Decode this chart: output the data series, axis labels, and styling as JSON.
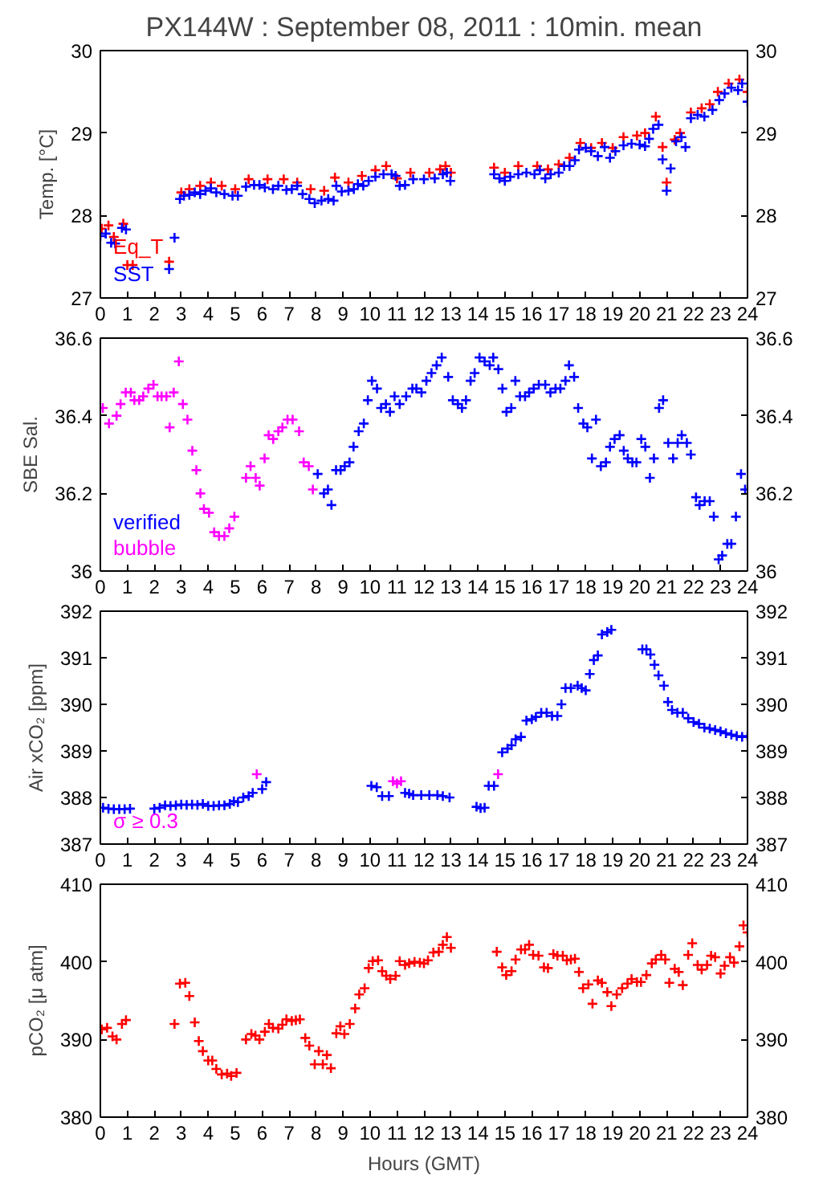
{
  "chart_data": [
    {
      "type": "scatter",
      "title": "PX144W : September 08, 2011 : 10min. mean",
      "ylabel": "Temp. [°C]",
      "xlim": [
        0,
        24
      ],
      "xticks": [
        0,
        1,
        2,
        3,
        4,
        5,
        6,
        7,
        8,
        9,
        10,
        11,
        12,
        13,
        14,
        15,
        16,
        17,
        18,
        19,
        20,
        21,
        22,
        23,
        24
      ],
      "ylim": [
        27,
        30
      ],
      "yticks": [
        27,
        28,
        29,
        30
      ],
      "y2lim": [
        27,
        30
      ],
      "y2ticks": [
        27,
        28,
        29,
        30
      ],
      "grid": false,
      "legend": "bottom left",
      "marker": "cross",
      "series": [
        {
          "name": "Eq_T",
          "color": "#ff0000",
          "x": [
            0.05,
            0.3,
            0.5,
            0.85,
            1.0,
            1.2,
            2.55,
            3.0,
            3.3,
            3.7,
            4.1,
            4.5,
            5.0,
            5.5,
            6.2,
            6.8,
            7.3,
            7.8,
            8.3,
            8.7,
            9.2,
            9.7,
            10.2,
            10.6,
            11.0,
            11.5,
            12.2,
            12.6,
            12.8,
            13.0,
            14.6,
            15.0,
            15.5,
            16.2,
            16.6,
            17.0,
            17.4,
            17.8,
            18.2,
            18.6,
            19.0,
            19.4,
            19.9,
            20.2,
            20.6,
            20.85,
            21.0,
            21.3,
            21.5,
            21.9,
            22.3,
            22.6,
            22.9,
            23.3,
            23.7,
            24.0
          ],
          "values": [
            27.84,
            27.88,
            27.74,
            27.9,
            27.4,
            27.4,
            27.44,
            28.28,
            28.32,
            28.36,
            28.4,
            28.36,
            28.32,
            28.44,
            28.44,
            28.44,
            28.4,
            28.32,
            28.3,
            28.46,
            28.4,
            28.48,
            28.55,
            28.6,
            28.45,
            28.52,
            28.52,
            28.56,
            28.6,
            28.52,
            28.58,
            28.52,
            28.6,
            28.6,
            28.56,
            28.62,
            28.7,
            28.88,
            28.82,
            28.88,
            28.82,
            28.95,
            28.97,
            29.0,
            29.2,
            28.83,
            28.4,
            28.92,
            29.0,
            29.25,
            29.3,
            29.35,
            29.5,
            29.6,
            29.65,
            29.5
          ]
        },
        {
          "name": "SST",
          "color": "#0000ff",
          "x": [
            0.0,
            0.2,
            0.4,
            0.55,
            0.8,
            0.95,
            2.55,
            2.75,
            2.95,
            3.1,
            3.3,
            3.5,
            3.7,
            3.9,
            4.1,
            4.3,
            4.6,
            4.9,
            5.1,
            5.4,
            5.7,
            5.9,
            6.1,
            6.4,
            6.6,
            6.9,
            7.1,
            7.3,
            7.5,
            7.75,
            7.95,
            8.2,
            8.45,
            8.65,
            8.75,
            8.95,
            9.2,
            9.4,
            9.55,
            9.75,
            9.95,
            10.2,
            10.5,
            10.8,
            10.95,
            11.1,
            11.3,
            11.6,
            12.0,
            12.4,
            12.7,
            12.85,
            12.98,
            14.6,
            14.8,
            15.0,
            15.2,
            15.5,
            15.8,
            16.1,
            16.3,
            16.5,
            16.7,
            17.0,
            17.2,
            17.4,
            17.6,
            17.75,
            18.0,
            18.2,
            18.45,
            18.7,
            18.9,
            19.1,
            19.4,
            19.7,
            20.0,
            20.2,
            20.35,
            20.5,
            20.7,
            20.85,
            21.0,
            21.15,
            21.35,
            21.55,
            21.7,
            21.9,
            22.15,
            22.4,
            22.7,
            22.95,
            23.15,
            23.4,
            23.65,
            23.8,
            24.0
          ],
          "values": [
            27.75,
            27.78,
            27.67,
            27.66,
            27.85,
            27.83,
            27.35,
            27.73,
            28.2,
            28.24,
            28.25,
            28.28,
            28.26,
            28.3,
            28.33,
            28.28,
            28.26,
            28.24,
            28.24,
            28.35,
            28.37,
            28.37,
            28.34,
            28.32,
            28.36,
            28.31,
            28.32,
            28.36,
            28.26,
            28.2,
            28.15,
            28.18,
            28.2,
            28.18,
            28.36,
            28.29,
            28.3,
            28.32,
            28.38,
            28.36,
            28.42,
            28.47,
            28.5,
            28.5,
            28.48,
            28.36,
            28.37,
            28.44,
            28.44,
            28.45,
            28.5,
            28.52,
            28.42,
            28.5,
            28.45,
            28.42,
            28.47,
            28.5,
            28.52,
            28.5,
            28.55,
            28.45,
            28.5,
            28.52,
            28.6,
            28.6,
            28.67,
            28.8,
            28.82,
            28.78,
            28.72,
            28.83,
            28.7,
            28.78,
            28.85,
            28.87,
            28.86,
            28.84,
            28.93,
            29.05,
            29.1,
            28.68,
            28.3,
            28.57,
            28.9,
            28.95,
            28.83,
            29.18,
            29.22,
            29.2,
            29.28,
            29.4,
            29.48,
            29.55,
            29.52,
            29.6,
            29.38
          ]
        }
      ]
    },
    {
      "type": "scatter",
      "ylabel": "SBE Sal.",
      "xlim": [
        0,
        24
      ],
      "xticks": [
        0,
        1,
        2,
        3,
        4,
        5,
        6,
        7,
        8,
        9,
        10,
        11,
        12,
        13,
        14,
        15,
        16,
        17,
        18,
        19,
        20,
        21,
        22,
        23,
        24
      ],
      "ylim": [
        36,
        36.6
      ],
      "yticks": [
        36,
        36.2,
        36.4,
        36.6
      ],
      "y2lim": [
        36,
        36.6
      ],
      "y2ticks": [
        36,
        36.2,
        36.4,
        36.6
      ],
      "grid": false,
      "legend": "bottom left",
      "marker": "cross",
      "series": [
        {
          "name": "verified",
          "color": "#0000ff",
          "x": [
            8.06,
            8.29,
            8.44,
            8.57,
            8.74,
            8.91,
            9.06,
            9.24,
            9.39,
            9.58,
            9.77,
            9.92,
            10.07,
            10.26,
            10.41,
            10.59,
            10.74,
            10.91,
            11.1,
            11.34,
            11.57,
            11.72,
            11.91,
            12.09,
            12.28,
            12.47,
            12.66,
            12.9,
            13.07,
            13.26,
            13.41,
            13.56,
            13.73,
            13.88,
            14.06,
            14.25,
            14.44,
            14.57,
            14.76,
            14.91,
            15.06,
            15.24,
            15.39,
            15.56,
            15.75,
            15.9,
            16.07,
            16.26,
            16.5,
            16.69,
            16.88,
            17.06,
            17.25,
            17.38,
            17.57,
            17.72,
            17.91,
            18.06,
            18.23,
            18.38,
            18.56,
            18.75,
            18.9,
            19.07,
            19.26,
            19.41,
            19.56,
            19.73,
            19.88,
            20.06,
            20.21,
            20.38,
            20.53,
            20.72,
            20.87,
            21.06,
            21.24,
            21.41,
            21.56,
            21.75,
            21.9,
            22.09,
            22.22,
            22.41,
            22.6,
            22.75,
            22.93,
            23.06,
            23.25,
            23.4,
            23.57,
            23.76,
            23.91
          ],
          "values": [
            36.25,
            36.2,
            36.21,
            36.17,
            36.26,
            36.26,
            36.27,
            36.28,
            36.32,
            36.36,
            36.38,
            36.44,
            36.49,
            36.47,
            36.42,
            36.43,
            36.41,
            36.45,
            36.43,
            36.45,
            36.47,
            36.47,
            36.46,
            36.49,
            36.51,
            36.53,
            36.55,
            36.5,
            36.44,
            36.43,
            36.42,
            36.44,
            36.49,
            36.51,
            36.55,
            36.54,
            36.53,
            36.55,
            36.52,
            36.47,
            36.41,
            36.42,
            36.49,
            36.45,
            36.45,
            36.46,
            36.47,
            36.48,
            36.48,
            36.46,
            36.47,
            36.47,
            36.49,
            36.53,
            36.5,
            36.42,
            36.38,
            36.37,
            36.29,
            36.39,
            36.27,
            36.28,
            36.32,
            36.34,
            36.35,
            36.31,
            36.29,
            36.28,
            36.28,
            36.34,
            36.32,
            36.24,
            36.29,
            36.42,
            36.44,
            36.33,
            36.29,
            36.33,
            36.35,
            36.33,
            36.3,
            36.19,
            36.17,
            36.18,
            36.18,
            36.14,
            36.03,
            36.04,
            36.07,
            36.07,
            36.14,
            36.25,
            36.21
          ]
        },
        {
          "name": "bubble",
          "color": "#ff00ff",
          "x": [
            0.09,
            0.32,
            0.6,
            0.75,
            0.94,
            1.13,
            1.26,
            1.44,
            1.59,
            1.78,
            1.97,
            2.12,
            2.27,
            2.45,
            2.57,
            2.72,
            2.91,
            3.06,
            3.23,
            3.41,
            3.56,
            3.71,
            3.84,
            4.03,
            4.22,
            4.4,
            4.6,
            4.78,
            4.97,
            5.4,
            5.57,
            5.76,
            5.91,
            6.09,
            6.24,
            6.41,
            6.6,
            6.75,
            6.94,
            7.13,
            7.37,
            7.54,
            7.73,
            7.88
          ],
          "values": [
            36.42,
            36.38,
            36.4,
            36.43,
            36.46,
            36.46,
            36.44,
            36.44,
            36.45,
            36.47,
            36.48,
            36.45,
            36.45,
            36.45,
            36.37,
            36.46,
            36.54,
            36.43,
            36.39,
            36.31,
            36.26,
            36.2,
            36.16,
            36.15,
            36.1,
            36.09,
            36.09,
            36.11,
            36.14,
            36.24,
            36.27,
            36.24,
            36.22,
            36.29,
            36.35,
            36.34,
            36.36,
            36.37,
            36.39,
            36.39,
            36.36,
            36.28,
            36.27,
            36.21
          ]
        }
      ]
    },
    {
      "type": "scatter",
      "ylabel": "Air xCO₂ [ppm]",
      "xlim": [
        0,
        24
      ],
      "xticks": [
        0,
        1,
        2,
        3,
        4,
        5,
        6,
        7,
        8,
        9,
        10,
        11,
        12,
        13,
        14,
        15,
        16,
        17,
        18,
        19,
        20,
        21,
        22,
        23,
        24
      ],
      "ylim": [
        387,
        392
      ],
      "yticks": [
        387,
        388,
        389,
        390,
        391,
        392
      ],
      "y2lim": [
        387,
        392
      ],
      "y2ticks": [
        387,
        388,
        389,
        390,
        391,
        392
      ],
      "grid": false,
      "legend": "bottom left",
      "marker": "cross",
      "series": [
        {
          "color": "#0000ff",
          "x": [
            0.1,
            0.3,
            0.5,
            0.7,
            0.9,
            1.1,
            2.0,
            2.2,
            2.4,
            2.6,
            2.8,
            3.0,
            3.2,
            3.4,
            3.6,
            3.8,
            4.0,
            4.2,
            4.4,
            4.6,
            4.8,
            4.95,
            5.1,
            5.3,
            5.5,
            5.65,
            6.0,
            6.15,
            10.05,
            10.25,
            10.45,
            10.7,
            11.3,
            11.45,
            11.6,
            11.9,
            12.2,
            12.5,
            12.7,
            12.95,
            13.95,
            14.1,
            14.25,
            14.4,
            14.6,
            14.9,
            15.1,
            15.25,
            15.4,
            15.6,
            15.8,
            16.0,
            16.15,
            16.35,
            16.55,
            16.75,
            16.95,
            17.1,
            17.25,
            17.45,
            17.7,
            17.85,
            18.0,
            18.15,
            18.3,
            18.45,
            18.6,
            18.8,
            18.95,
            20.1,
            20.25,
            20.4,
            20.55,
            20.7,
            20.9,
            21.05,
            21.2,
            21.4,
            21.6,
            21.8,
            22.0,
            22.2,
            22.4,
            22.6,
            22.8,
            23.0,
            23.2,
            23.4,
            23.6,
            23.8,
            24.0
          ],
          "values": [
            387.78,
            387.76,
            387.75,
            387.75,
            387.75,
            387.76,
            387.76,
            387.78,
            387.83,
            387.82,
            387.83,
            387.85,
            387.84,
            387.85,
            387.84,
            387.86,
            387.82,
            387.82,
            387.83,
            387.83,
            387.86,
            387.92,
            387.9,
            388.0,
            388.03,
            388.1,
            388.18,
            388.33,
            388.25,
            388.22,
            388.03,
            388.03,
            388.1,
            388.08,
            388.05,
            388.05,
            388.05,
            388.05,
            388.03,
            388.0,
            387.8,
            387.77,
            387.78,
            388.25,
            388.25,
            388.97,
            389.05,
            389.12,
            389.25,
            389.3,
            389.65,
            389.68,
            389.73,
            389.82,
            389.82,
            389.75,
            389.75,
            390.0,
            390.35,
            390.35,
            390.4,
            390.35,
            390.3,
            390.65,
            390.95,
            391.05,
            391.5,
            391.55,
            391.6,
            391.18,
            391.18,
            391.07,
            390.85,
            390.62,
            390.4,
            390.05,
            389.88,
            389.82,
            389.82,
            389.7,
            389.62,
            389.58,
            389.5,
            389.48,
            389.45,
            389.42,
            389.38,
            389.35,
            389.32,
            389.3,
            389.32
          ]
        },
        {
          "name": "σ ≥ 0.3",
          "color": "#ff00ff",
          "x": [
            5.8,
            10.85,
            11.0,
            11.15,
            14.75
          ],
          "values": [
            388.5,
            388.35,
            388.3,
            388.35,
            388.5
          ]
        }
      ]
    },
    {
      "type": "scatter",
      "ylabel": "pCO₂ [μ atm]",
      "xlabel": "Hours (GMT)",
      "xlim": [
        0,
        24
      ],
      "xticks": [
        0,
        1,
        2,
        3,
        4,
        5,
        6,
        7,
        8,
        9,
        10,
        11,
        12,
        13,
        14,
        15,
        16,
        17,
        18,
        19,
        20,
        21,
        22,
        23,
        24
      ],
      "ylim": [
        380,
        410
      ],
      "yticks": [
        380,
        390,
        400,
        410
      ],
      "y2lim": [
        380,
        410
      ],
      "y2ticks": [
        380,
        390,
        400,
        410
      ],
      "grid": false,
      "marker": "cross",
      "series": [
        {
          "color": "#ff0000",
          "x": [
            0.05,
            0.25,
            0.45,
            0.6,
            0.8,
            0.95,
            2.75,
            2.95,
            3.15,
            3.3,
            3.5,
            3.65,
            3.8,
            4.0,
            4.15,
            4.3,
            4.5,
            4.7,
            4.85,
            5.05,
            5.4,
            5.6,
            5.75,
            5.9,
            6.1,
            6.25,
            6.4,
            6.6,
            6.75,
            6.9,
            7.1,
            7.25,
            7.4,
            7.6,
            7.75,
            7.95,
            8.1,
            8.25,
            8.4,
            8.55,
            8.75,
            8.9,
            9.05,
            9.25,
            9.45,
            9.6,
            9.8,
            9.95,
            10.1,
            10.3,
            10.45,
            10.6,
            10.75,
            10.95,
            11.1,
            11.3,
            11.45,
            11.65,
            11.85,
            12.0,
            12.15,
            12.35,
            12.55,
            12.7,
            12.85,
            13.0,
            14.7,
            14.9,
            15.05,
            15.25,
            15.4,
            15.6,
            15.75,
            15.9,
            16.05,
            16.25,
            16.45,
            16.6,
            16.8,
            16.95,
            17.15,
            17.3,
            17.45,
            17.6,
            17.75,
            17.9,
            18.1,
            18.25,
            18.45,
            18.6,
            18.8,
            18.95,
            19.15,
            19.35,
            19.55,
            19.7,
            19.9,
            20.05,
            20.25,
            20.45,
            20.6,
            20.8,
            20.95,
            21.1,
            21.3,
            21.45,
            21.6,
            21.8,
            21.95,
            22.15,
            22.3,
            22.5,
            22.65,
            22.8,
            23.0,
            23.15,
            23.35,
            23.5,
            23.7,
            23.85,
            24.0
          ],
          "values": [
            391.3,
            391.5,
            390.4,
            390.0,
            392.0,
            392.5,
            392.0,
            397.2,
            397.3,
            395.6,
            392.2,
            389.8,
            388.5,
            387.3,
            387.3,
            386.2,
            385.5,
            385.6,
            385.3,
            385.7,
            390.0,
            390.7,
            390.5,
            390.0,
            391.0,
            392.0,
            391.5,
            391.4,
            391.9,
            392.6,
            392.4,
            392.5,
            392.6,
            390.2,
            389.2,
            386.8,
            388.5,
            386.8,
            388.0,
            386.3,
            390.8,
            391.7,
            390.7,
            392.0,
            394.0,
            395.8,
            396.6,
            399.2,
            400.1,
            400.2,
            398.8,
            398.2,
            397.8,
            398.2,
            400.1,
            399.6,
            399.8,
            400.0,
            399.9,
            399.8,
            400.2,
            401.2,
            401.3,
            402.2,
            403.2,
            401.8,
            401.3,
            399.3,
            398.3,
            398.8,
            400.3,
            401.6,
            401.6,
            402.2,
            400.9,
            400.8,
            399.3,
            399.2,
            401.0,
            400.8,
            400.8,
            400.2,
            400.3,
            400.4,
            398.7,
            396.6,
            397.1,
            394.6,
            397.6,
            397.3,
            396.1,
            394.3,
            395.8,
            396.6,
            397.2,
            397.8,
            397.4,
            397.4,
            398.3,
            399.8,
            400.3,
            400.9,
            400.3,
            397.3,
            399.1,
            398.7,
            397.0,
            400.9,
            402.4,
            399.6,
            399.0,
            399.6,
            400.8,
            400.6,
            398.5,
            399.5,
            400.6,
            399.9,
            402.0,
            404.7,
            403.8
          ]
        }
      ]
    }
  ]
}
